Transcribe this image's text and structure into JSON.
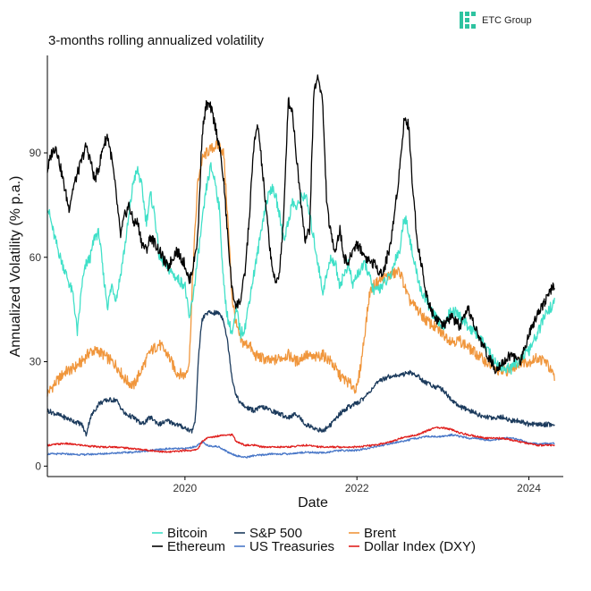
{
  "brand": {
    "name": "ETC Group",
    "logo_icon": "etc-group-logo-icon",
    "logo_color": "#2ec3a0"
  },
  "chart_data": {
    "type": "line",
    "title": "3-months rolling annualized volatility",
    "xlabel": "Date",
    "ylabel": "Annualized Volatility (% p.a.)",
    "xlim": [
      2018.4,
      2024.4
    ],
    "ylim": [
      -3,
      118
    ],
    "xticks": [
      {
        "value": 2020,
        "label": "2020"
      },
      {
        "value": 2022,
        "label": "2022"
      },
      {
        "value": 2024,
        "label": "2024"
      }
    ],
    "yticks": [
      {
        "value": 0,
        "label": "0"
      },
      {
        "value": 30,
        "label": "30"
      },
      {
        "value": 60,
        "label": "60"
      },
      {
        "value": 90,
        "label": "90"
      }
    ],
    "grid": false,
    "legend_position": "bottom",
    "series": [
      {
        "name": "Bitcoin",
        "color": "#40e0c8",
        "x": [
          2018.4,
          2018.48,
          2018.55,
          2018.62,
          2018.7,
          2018.75,
          2018.8,
          2018.85,
          2018.9,
          2018.95,
          2019.0,
          2019.05,
          2019.1,
          2019.15,
          2019.2,
          2019.25,
          2019.3,
          2019.35,
          2019.4,
          2019.45,
          2019.5,
          2019.55,
          2019.6,
          2019.65,
          2019.7,
          2019.8,
          2019.9,
          2020.0,
          2020.05,
          2020.1,
          2020.15,
          2020.2,
          2020.25,
          2020.3,
          2020.35,
          2020.4,
          2020.45,
          2020.5,
          2020.55,
          2020.6,
          2020.65,
          2020.7,
          2020.75,
          2020.8,
          2020.85,
          2020.9,
          2020.95,
          2021.0,
          2021.05,
          2021.1,
          2021.15,
          2021.2,
          2021.25,
          2021.3,
          2021.35,
          2021.4,
          2021.45,
          2021.5,
          2021.55,
          2021.6,
          2021.65,
          2021.7,
          2021.75,
          2021.8,
          2021.85,
          2021.9,
          2021.95,
          2022.0,
          2022.1,
          2022.2,
          2022.3,
          2022.4,
          2022.45,
          2022.5,
          2022.55,
          2022.6,
          2022.65,
          2022.7,
          2022.75,
          2022.8,
          2022.9,
          2023.0,
          2023.1,
          2023.2,
          2023.3,
          2023.4,
          2023.5,
          2023.6,
          2023.7,
          2023.8,
          2023.9,
          2024.0,
          2024.1,
          2024.2,
          2024.3
        ],
        "y": [
          75,
          66,
          60,
          55,
          49,
          38,
          52,
          58,
          60,
          66,
          67,
          55,
          46,
          52,
          48,
          55,
          63,
          72,
          82,
          85,
          80,
          70,
          78,
          72,
          60,
          57,
          54,
          52,
          42,
          50,
          60,
          70,
          80,
          86,
          82,
          74,
          52,
          42,
          38,
          45,
          38,
          40,
          48,
          55,
          62,
          70,
          76,
          80,
          78,
          72,
          65,
          70,
          76,
          74,
          77,
          78,
          72,
          65,
          58,
          50,
          55,
          60,
          58,
          52,
          55,
          58,
          52,
          55,
          58,
          50,
          52,
          55,
          60,
          62,
          72,
          68,
          60,
          55,
          50,
          48,
          43,
          40,
          45,
          43,
          40,
          38,
          34,
          30,
          28,
          28,
          31,
          33,
          38,
          44,
          47
        ]
      },
      {
        "name": "Ethereum",
        "color": "#000000",
        "x": [
          2018.4,
          2018.45,
          2018.5,
          2018.55,
          2018.6,
          2018.65,
          2018.7,
          2018.75,
          2018.8,
          2018.85,
          2018.9,
          2018.95,
          2019.0,
          2019.05,
          2019.1,
          2019.15,
          2019.2,
          2019.25,
          2019.3,
          2019.35,
          2019.4,
          2019.45,
          2019.5,
          2019.55,
          2019.6,
          2019.7,
          2019.8,
          2019.9,
          2020.0,
          2020.05,
          2020.1,
          2020.15,
          2020.2,
          2020.25,
          2020.3,
          2020.35,
          2020.4,
          2020.45,
          2020.5,
          2020.55,
          2020.6,
          2020.65,
          2020.7,
          2020.75,
          2020.8,
          2020.85,
          2020.9,
          2020.95,
          2021.0,
          2021.05,
          2021.1,
          2021.15,
          2021.2,
          2021.25,
          2021.3,
          2021.35,
          2021.4,
          2021.45,
          2021.5,
          2021.55,
          2021.6,
          2021.65,
          2021.7,
          2021.75,
          2021.8,
          2021.85,
          2021.9,
          2021.95,
          2022.0,
          2022.1,
          2022.2,
          2022.3,
          2022.4,
          2022.5,
          2022.55,
          2022.6,
          2022.65,
          2022.7,
          2022.75,
          2022.8,
          2022.85,
          2022.9,
          2022.95,
          2023.0,
          2023.1,
          2023.2,
          2023.3,
          2023.4,
          2023.5,
          2023.6,
          2023.7,
          2023.8,
          2023.9,
          2024.0,
          2024.1,
          2024.2,
          2024.3
        ],
        "y": [
          85,
          90,
          92,
          86,
          80,
          74,
          80,
          84,
          88,
          92,
          88,
          82,
          86,
          92,
          95,
          88,
          78,
          66,
          72,
          75,
          70,
          70,
          64,
          62,
          66,
          62,
          57,
          62,
          58,
          53,
          58,
          66,
          96,
          104,
          103,
          98,
          92,
          82,
          65,
          50,
          46,
          48,
          56,
          72,
          92,
          98,
          85,
          72,
          60,
          52,
          56,
          72,
          105,
          102,
          88,
          76,
          65,
          68,
          108,
          112,
          105,
          75,
          66,
          62,
          68,
          60,
          58,
          62,
          64,
          60,
          58,
          55,
          65,
          86,
          100,
          98,
          80,
          65,
          58,
          50,
          46,
          43,
          42,
          40,
          43,
          40,
          45,
          38,
          33,
          28,
          30,
          32,
          30,
          38,
          44,
          48,
          52
        ]
      },
      {
        "name": "S&P 500",
        "color": "#1b3a5c",
        "x": [
          2018.4,
          2018.5,
          2018.6,
          2018.7,
          2018.8,
          2018.85,
          2018.9,
          2018.95,
          2019.0,
          2019.1,
          2019.2,
          2019.3,
          2019.4,
          2019.5,
          2019.6,
          2019.7,
          2019.8,
          2019.9,
          2020.0,
          2020.08,
          2020.12,
          2020.15,
          2020.18,
          2020.2,
          2020.25,
          2020.3,
          2020.35,
          2020.4,
          2020.45,
          2020.5,
          2020.55,
          2020.6,
          2020.65,
          2020.7,
          2020.8,
          2020.9,
          2021.0,
          2021.1,
          2021.2,
          2021.3,
          2021.4,
          2021.5,
          2021.6,
          2021.7,
          2021.8,
          2021.9,
          2022.0,
          2022.1,
          2022.2,
          2022.3,
          2022.4,
          2022.5,
          2022.6,
          2022.7,
          2022.8,
          2022.9,
          2023.0,
          2023.1,
          2023.2,
          2023.3,
          2023.4,
          2023.5,
          2023.6,
          2023.7,
          2023.8,
          2023.9,
          2024.0,
          2024.1,
          2024.2,
          2024.3
        ],
        "y": [
          16,
          15,
          14,
          13,
          12,
          9,
          14,
          16,
          18,
          19,
          19,
          15,
          14,
          12,
          14,
          12,
          13,
          12,
          11,
          10,
          13,
          28,
          38,
          42,
          44,
          44,
          44,
          44,
          42,
          35,
          25,
          20,
          18,
          17,
          16,
          17,
          16,
          15,
          14,
          15,
          12,
          11,
          10,
          12,
          15,
          17,
          18,
          20,
          23,
          25,
          26,
          26,
          27,
          26,
          24,
          23,
          22,
          19,
          17,
          16,
          15,
          14,
          14,
          14,
          13,
          13,
          12,
          12,
          12,
          12
        ]
      },
      {
        "name": "US Treasuries",
        "color": "#4a78c8",
        "x": [
          2018.4,
          2018.6,
          2018.8,
          2019.0,
          2019.2,
          2019.4,
          2019.6,
          2019.8,
          2020.0,
          2020.1,
          2020.15,
          2020.2,
          2020.25,
          2020.4,
          2020.5,
          2020.6,
          2020.7,
          2020.8,
          2020.9,
          2021.0,
          2021.2,
          2021.4,
          2021.6,
          2021.8,
          2022.0,
          2022.1,
          2022.2,
          2022.3,
          2022.4,
          2022.5,
          2022.6,
          2022.7,
          2022.8,
          2022.9,
          2023.0,
          2023.1,
          2023.2,
          2023.3,
          2023.4,
          2023.5,
          2023.6,
          2023.7,
          2023.8,
          2023.9,
          2024.0,
          2024.1,
          2024.2,
          2024.3
        ],
        "y": [
          3.5,
          3.5,
          3.3,
          3.5,
          3.8,
          4,
          4.5,
          5,
          5,
          5.5,
          6,
          7,
          6,
          5.5,
          4,
          3,
          2.5,
          3,
          3.2,
          3.5,
          3.5,
          4,
          3.8,
          4.5,
          4.5,
          5,
          5.5,
          6,
          6.5,
          7,
          7.5,
          8,
          8.5,
          8.5,
          8.5,
          9,
          8.5,
          8,
          8,
          7.5,
          7.5,
          8,
          8,
          7.5,
          6.5,
          6.5,
          6.5,
          6.5
        ]
      },
      {
        "name": "Brent",
        "color": "#f0963c",
        "x": [
          2018.4,
          2018.5,
          2018.6,
          2018.7,
          2018.8,
          2018.9,
          2019.0,
          2019.1,
          2019.2,
          2019.3,
          2019.4,
          2019.5,
          2019.6,
          2019.7,
          2019.8,
          2019.9,
          2020.0,
          2020.05,
          2020.1,
          2020.15,
          2020.2,
          2020.25,
          2020.3,
          2020.35,
          2020.4,
          2020.45,
          2020.5,
          2020.55,
          2020.6,
          2020.65,
          2020.7,
          2020.75,
          2020.8,
          2020.9,
          2021.0,
          2021.1,
          2021.2,
          2021.3,
          2021.4,
          2021.5,
          2021.6,
          2021.7,
          2021.8,
          2021.9,
          2022.0,
          2022.05,
          2022.1,
          2022.15,
          2022.2,
          2022.3,
          2022.4,
          2022.5,
          2022.6,
          2022.7,
          2022.8,
          2022.9,
          2023.0,
          2023.1,
          2023.2,
          2023.3,
          2023.4,
          2023.5,
          2023.6,
          2023.7,
          2023.8,
          2023.9,
          2024.0,
          2024.1,
          2024.2,
          2024.3
        ],
        "y": [
          21,
          24,
          27,
          28,
          30,
          33,
          33,
          31,
          29,
          25,
          23,
          28,
          33,
          35,
          32,
          27,
          26,
          30,
          60,
          82,
          88,
          90,
          91,
          92,
          92,
          90,
          70,
          48,
          40,
          36,
          35,
          35,
          32,
          31,
          30,
          31,
          32,
          30,
          32,
          31,
          32,
          30,
          26,
          24,
          22,
          30,
          40,
          50,
          52,
          54,
          55,
          56,
          48,
          45,
          42,
          40,
          38,
          36,
          36,
          34,
          32,
          30,
          28,
          27,
          28,
          30,
          30,
          31,
          30,
          25
        ]
      },
      {
        "name": "Dollar Index (DXY)",
        "color": "#e0201e",
        "x": [
          2018.4,
          2018.6,
          2018.8,
          2019.0,
          2019.2,
          2019.4,
          2019.6,
          2019.8,
          2020.0,
          2020.1,
          2020.15,
          2020.2,
          2020.25,
          2020.35,
          2020.45,
          2020.55,
          2020.6,
          2020.7,
          2020.8,
          2020.9,
          2021.0,
          2021.2,
          2021.4,
          2021.6,
          2021.8,
          2022.0,
          2022.2,
          2022.4,
          2022.5,
          2022.6,
          2022.7,
          2022.8,
          2022.9,
          2023.0,
          2023.1,
          2023.2,
          2023.3,
          2023.4,
          2023.5,
          2023.6,
          2023.7,
          2023.8,
          2023.9,
          2024.0,
          2024.1,
          2024.2,
          2024.3
        ],
        "y": [
          6,
          6.5,
          6,
          5.5,
          5.5,
          5,
          4.5,
          4,
          4.5,
          4.5,
          5,
          7,
          8,
          8.5,
          9,
          9,
          7,
          6,
          6,
          5.5,
          5.5,
          5.5,
          6,
          5.5,
          5.5,
          5.5,
          6,
          7,
          8,
          8.5,
          9,
          10,
          11,
          11,
          10.5,
          9.5,
          9,
          8.5,
          8,
          8,
          8,
          7.5,
          7,
          6.5,
          6,
          6,
          6
        ]
      }
    ]
  }
}
